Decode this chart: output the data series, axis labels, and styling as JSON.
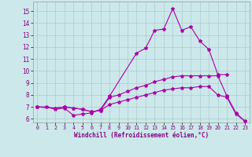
{
  "xlabel": "Windchill (Refroidissement éolien,°C)",
  "bg_color": "#cce8ea",
  "line_color": "#aa00aa",
  "grid_color": "#aacccc",
  "xlim": [
    -0.5,
    23.5
  ],
  "ylim": [
    5.7,
    15.8
  ],
  "xticks": [
    0,
    1,
    2,
    3,
    4,
    5,
    6,
    7,
    8,
    9,
    10,
    11,
    12,
    13,
    14,
    15,
    16,
    17,
    18,
    19,
    20,
    21,
    22,
    23
  ],
  "yticks": [
    6,
    7,
    8,
    9,
    10,
    11,
    12,
    13,
    14,
    15
  ],
  "lines": [
    {
      "x": [
        0,
        1,
        2,
        3,
        4,
        5,
        6,
        7,
        8,
        11,
        12,
        13,
        14,
        15,
        16,
        17,
        18,
        19,
        20,
        21
      ],
      "y": [
        7.0,
        7.0,
        6.8,
        6.9,
        6.3,
        6.4,
        6.5,
        6.8,
        7.9,
        11.5,
        11.9,
        13.4,
        13.5,
        15.2,
        13.4,
        13.7,
        12.5,
        11.8,
        9.7,
        9.7
      ]
    },
    {
      "x": [
        0,
        2,
        3,
        4,
        5,
        6,
        7,
        8,
        9,
        10,
        11,
        12,
        13,
        14,
        15,
        16,
        17,
        18,
        19,
        20,
        21,
        22,
        23
      ],
      "y": [
        7.0,
        6.9,
        7.0,
        6.9,
        6.8,
        6.6,
        6.7,
        7.8,
        8.0,
        8.3,
        8.6,
        8.8,
        9.1,
        9.3,
        9.5,
        9.6,
        9.6,
        9.6,
        9.6,
        9.6,
        7.9,
        6.5,
        5.8
      ]
    },
    {
      "x": [
        0,
        2,
        3,
        4,
        5,
        6,
        7,
        8,
        9,
        10,
        11,
        12,
        13,
        14,
        15,
        16,
        17,
        18,
        19,
        20,
        21,
        22,
        23
      ],
      "y": [
        7.0,
        6.9,
        7.0,
        6.9,
        6.8,
        6.6,
        6.7,
        7.2,
        7.4,
        7.6,
        7.8,
        8.0,
        8.2,
        8.4,
        8.5,
        8.6,
        8.6,
        8.7,
        8.7,
        8.0,
        7.8,
        6.4,
        5.8
      ]
    }
  ]
}
